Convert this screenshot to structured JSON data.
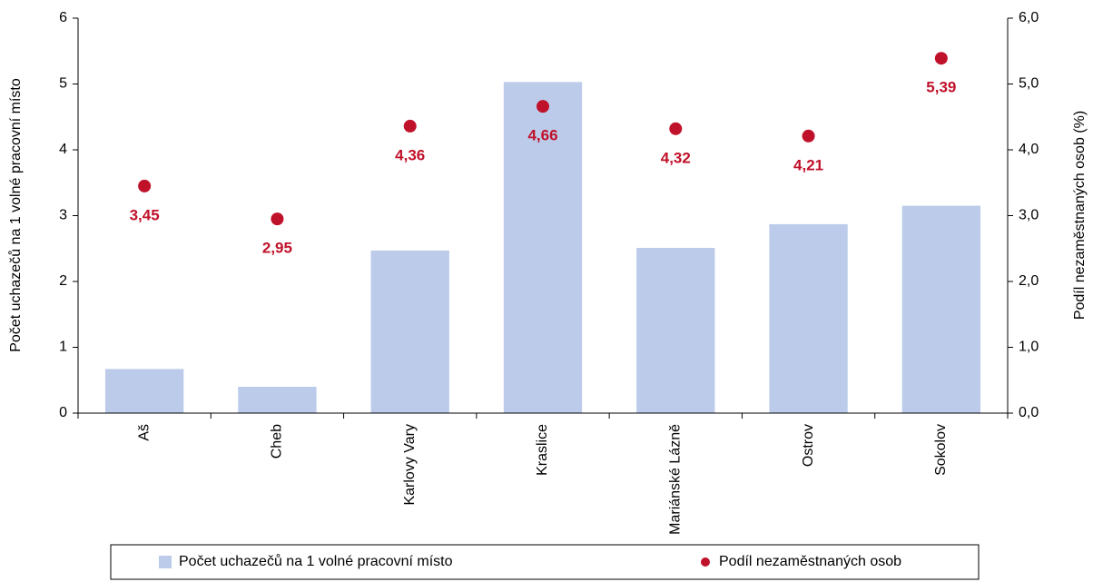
{
  "chart_data": {
    "type": "bar",
    "categories": [
      "Aš",
      "Cheb",
      "Karlovy Vary",
      "Kraslice",
      "Mariánské Lázně",
      "Ostrov",
      "Sokolov"
    ],
    "series": [
      {
        "name": "Počet uchazečů na 1 volné pracovní místo",
        "type": "bar",
        "color": "#bccbea",
        "values": [
          0.67,
          0.4,
          2.47,
          5.03,
          2.51,
          2.87,
          3.15
        ]
      },
      {
        "name": "Podíl nezaměstnaných osob",
        "type": "scatter",
        "axis": "y2",
        "color": "#c0112a",
        "values": [
          3.45,
          2.95,
          4.36,
          4.66,
          4.32,
          4.21,
          5.39
        ],
        "value_labels": [
          "3,45",
          "2,95",
          "4,36",
          "4,66",
          "4,32",
          "4,21",
          "5,39"
        ]
      }
    ],
    "ylabel": "Počet uchazečů na 1 volné pracovní místo",
    "y2label": "Podíl nezaměstnaných osob (%)",
    "ylim": [
      0,
      6
    ],
    "yticks": [
      0,
      1,
      2,
      3,
      4,
      5,
      6
    ],
    "y2lim": [
      0,
      6
    ],
    "y2ticks": [
      {
        "value": 0,
        "label": "0,0"
      },
      {
        "value": 1,
        "label": "1,0"
      },
      {
        "value": 2,
        "label": "2,0"
      },
      {
        "value": 3,
        "label": "3,0"
      },
      {
        "value": 4,
        "label": "4,0"
      },
      {
        "value": 5,
        "label": "5,0"
      },
      {
        "value": 6,
        "label": "6,0"
      }
    ],
    "grid": false,
    "legend": "bottom"
  }
}
